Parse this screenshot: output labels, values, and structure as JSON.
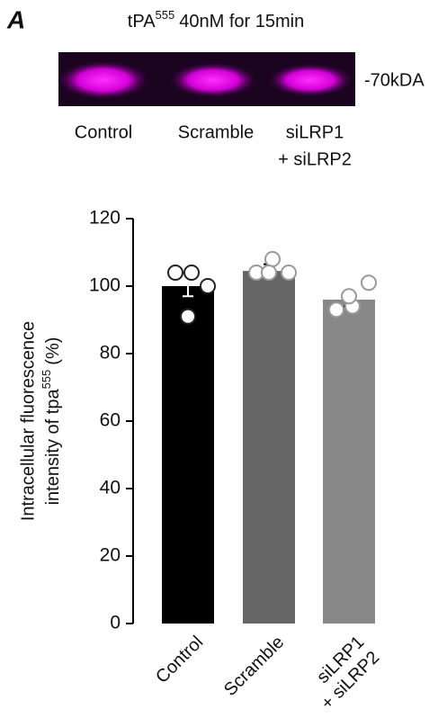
{
  "panel_label": "A",
  "blot": {
    "title": "tPA",
    "title_superscript": "555",
    "title_rest": "40nM for 15min",
    "marker": "-70kDA",
    "lanes": [
      [
        "Control"
      ],
      [
        "Scramble"
      ],
      [
        "siLRP1",
        "+ siLRP2"
      ]
    ]
  },
  "chart_data": {
    "type": "bar",
    "y_label": {
      "line1": "Intracellular fluorescence",
      "line2": "intensity of tpa",
      "line2_sup": "555",
      "line2_end": "(%)"
    },
    "categories": [
      [
        "Control"
      ],
      [
        "Scramble"
      ],
      [
        "siLRP1",
        "+ siLRP2"
      ]
    ],
    "values": [
      100,
      104.5,
      96
    ],
    "errors": [
      3,
      2,
      2
    ],
    "colors": [
      "#000000",
      "#666666",
      "#888888"
    ],
    "point_strokes": [
      "#222222",
      "#999999",
      "#999999"
    ],
    "points": [
      [
        104,
        104,
        100,
        91
      ],
      [
        104,
        108,
        104,
        104
      ],
      [
        93,
        94,
        101,
        97
      ]
    ],
    "ylim": [
      0,
      120
    ],
    "yticks": [
      0,
      20,
      40,
      60,
      80,
      100,
      120
    ]
  }
}
